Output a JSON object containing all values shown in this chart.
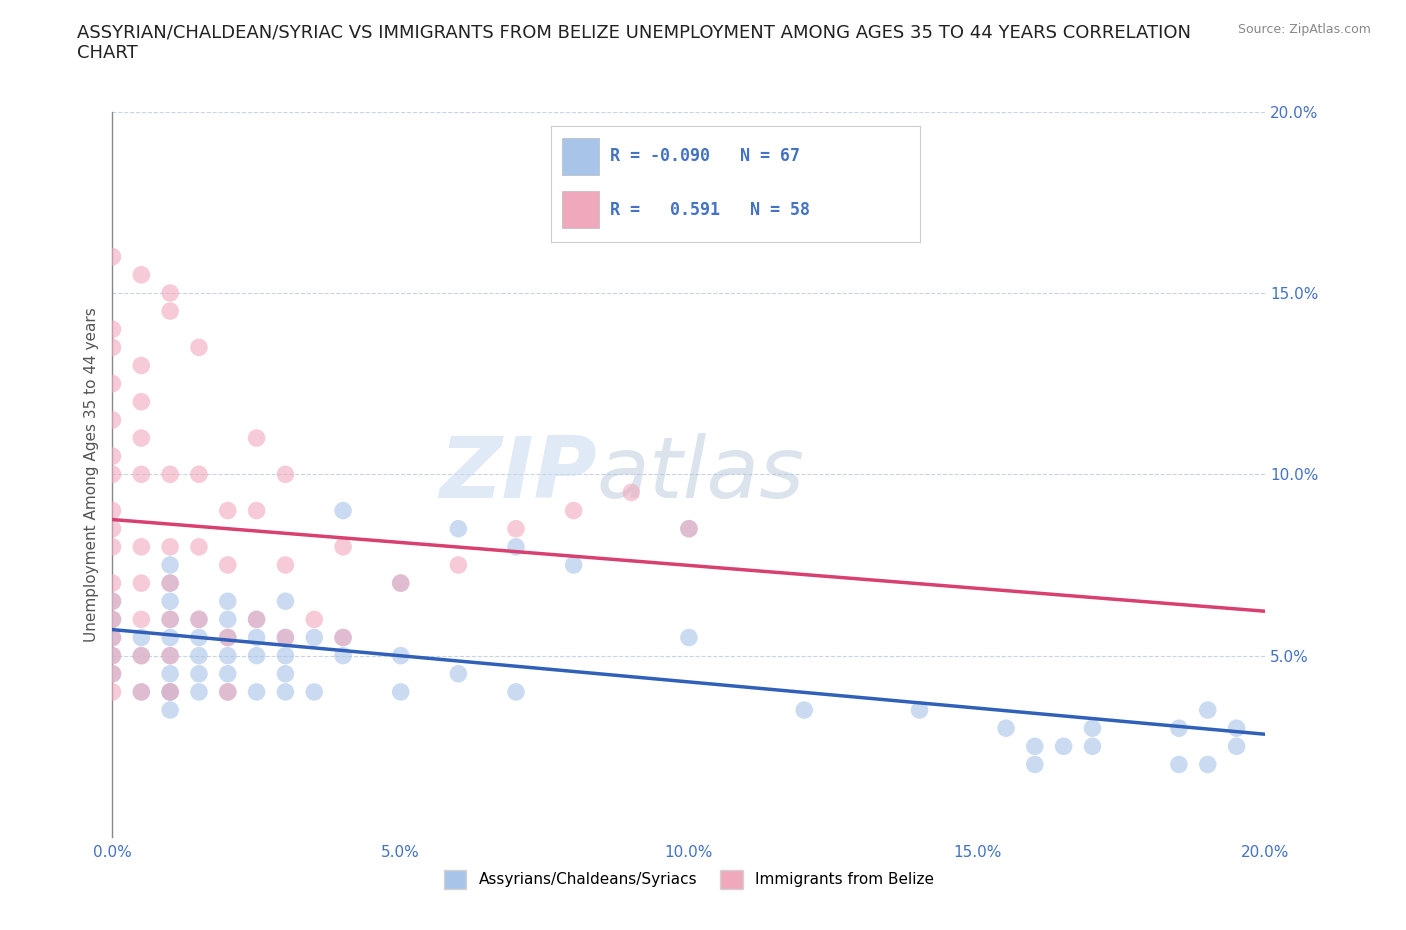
{
  "title": "ASSYRIAN/CHALDEAN/SYRIAC VS IMMIGRANTS FROM BELIZE UNEMPLOYMENT AMONG AGES 35 TO 44 YEARS CORRELATION\nCHART",
  "source_text": "Source: ZipAtlas.com",
  "ylabel": "Unemployment Among Ages 35 to 44 years",
  "xlim": [
    0.0,
    0.2
  ],
  "ylim": [
    0.0,
    0.2
  ],
  "x_ticks": [
    0.0,
    0.05,
    0.1,
    0.15,
    0.2
  ],
  "y_ticks": [
    0.05,
    0.1,
    0.15,
    0.2
  ],
  "x_tick_labels": [
    "0.0%",
    "5.0%",
    "10.0%",
    "15.0%",
    "20.0%"
  ],
  "y_tick_labels": [
    "5.0%",
    "10.0%",
    "15.0%",
    "20.0%"
  ],
  "legend_labels": [
    "Assyrians/Chaldeans/Syriacs",
    "Immigrants from Belize"
  ],
  "blue_R": "-0.090",
  "blue_N": "67",
  "pink_R": "0.591",
  "pink_N": "58",
  "blue_color": "#a8c4e8",
  "pink_color": "#f0a8bc",
  "blue_line_color": "#3060b8",
  "pink_line_color": "#d84070",
  "watermark_zip": "ZIP",
  "watermark_atlas": "atlas",
  "background_color": "#ffffff",
  "grid_color": "#c8d4e4",
  "title_fontsize": 13,
  "axis_label_fontsize": 11,
  "tick_fontsize": 11,
  "blue_scatter_x": [
    0.0,
    0.0,
    0.0,
    0.0,
    0.0,
    0.005,
    0.005,
    0.005,
    0.01,
    0.01,
    0.01,
    0.01,
    0.01,
    0.01,
    0.01,
    0.01,
    0.01,
    0.01,
    0.015,
    0.015,
    0.015,
    0.015,
    0.015,
    0.02,
    0.02,
    0.02,
    0.02,
    0.02,
    0.02,
    0.025,
    0.025,
    0.025,
    0.025,
    0.03,
    0.03,
    0.03,
    0.03,
    0.03,
    0.035,
    0.035,
    0.04,
    0.04,
    0.04,
    0.05,
    0.05,
    0.05,
    0.06,
    0.06,
    0.07,
    0.07,
    0.08,
    0.1,
    0.1,
    0.12,
    0.14,
    0.155,
    0.16,
    0.17,
    0.185,
    0.19,
    0.195,
    0.195,
    0.185,
    0.19,
    0.16,
    0.165,
    0.17
  ],
  "blue_scatter_y": [
    0.045,
    0.05,
    0.055,
    0.06,
    0.065,
    0.04,
    0.05,
    0.055,
    0.035,
    0.04,
    0.04,
    0.045,
    0.05,
    0.055,
    0.06,
    0.065,
    0.07,
    0.075,
    0.04,
    0.045,
    0.05,
    0.055,
    0.06,
    0.04,
    0.045,
    0.05,
    0.055,
    0.06,
    0.065,
    0.04,
    0.05,
    0.055,
    0.06,
    0.04,
    0.045,
    0.05,
    0.055,
    0.065,
    0.04,
    0.055,
    0.05,
    0.055,
    0.09,
    0.04,
    0.05,
    0.07,
    0.045,
    0.085,
    0.04,
    0.08,
    0.075,
    0.055,
    0.085,
    0.035,
    0.035,
    0.03,
    0.025,
    0.025,
    0.02,
    0.02,
    0.025,
    0.03,
    0.03,
    0.035,
    0.02,
    0.025,
    0.03
  ],
  "pink_scatter_x": [
    0.0,
    0.0,
    0.0,
    0.0,
    0.0,
    0.0,
    0.0,
    0.0,
    0.0,
    0.0,
    0.0,
    0.0,
    0.005,
    0.005,
    0.005,
    0.005,
    0.005,
    0.005,
    0.01,
    0.01,
    0.01,
    0.01,
    0.01,
    0.01,
    0.015,
    0.015,
    0.015,
    0.02,
    0.02,
    0.02,
    0.02,
    0.025,
    0.025,
    0.03,
    0.03,
    0.03,
    0.035,
    0.04,
    0.04,
    0.05,
    0.06,
    0.07,
    0.08,
    0.09,
    0.1,
    0.025,
    0.015,
    0.01,
    0.005,
    0.0,
    0.0,
    0.0,
    0.0,
    0.0,
    0.005,
    0.01,
    0.005,
    0.005
  ],
  "pink_scatter_y": [
    0.04,
    0.045,
    0.05,
    0.055,
    0.06,
    0.065,
    0.07,
    0.08,
    0.085,
    0.09,
    0.1,
    0.105,
    0.04,
    0.05,
    0.06,
    0.07,
    0.08,
    0.1,
    0.04,
    0.05,
    0.06,
    0.07,
    0.08,
    0.1,
    0.06,
    0.08,
    0.1,
    0.04,
    0.055,
    0.075,
    0.09,
    0.06,
    0.09,
    0.055,
    0.075,
    0.1,
    0.06,
    0.055,
    0.08,
    0.07,
    0.075,
    0.085,
    0.09,
    0.095,
    0.085,
    0.11,
    0.135,
    0.15,
    0.155,
    0.16,
    0.135,
    0.125,
    0.115,
    0.14,
    0.13,
    0.145,
    0.12,
    0.11
  ]
}
